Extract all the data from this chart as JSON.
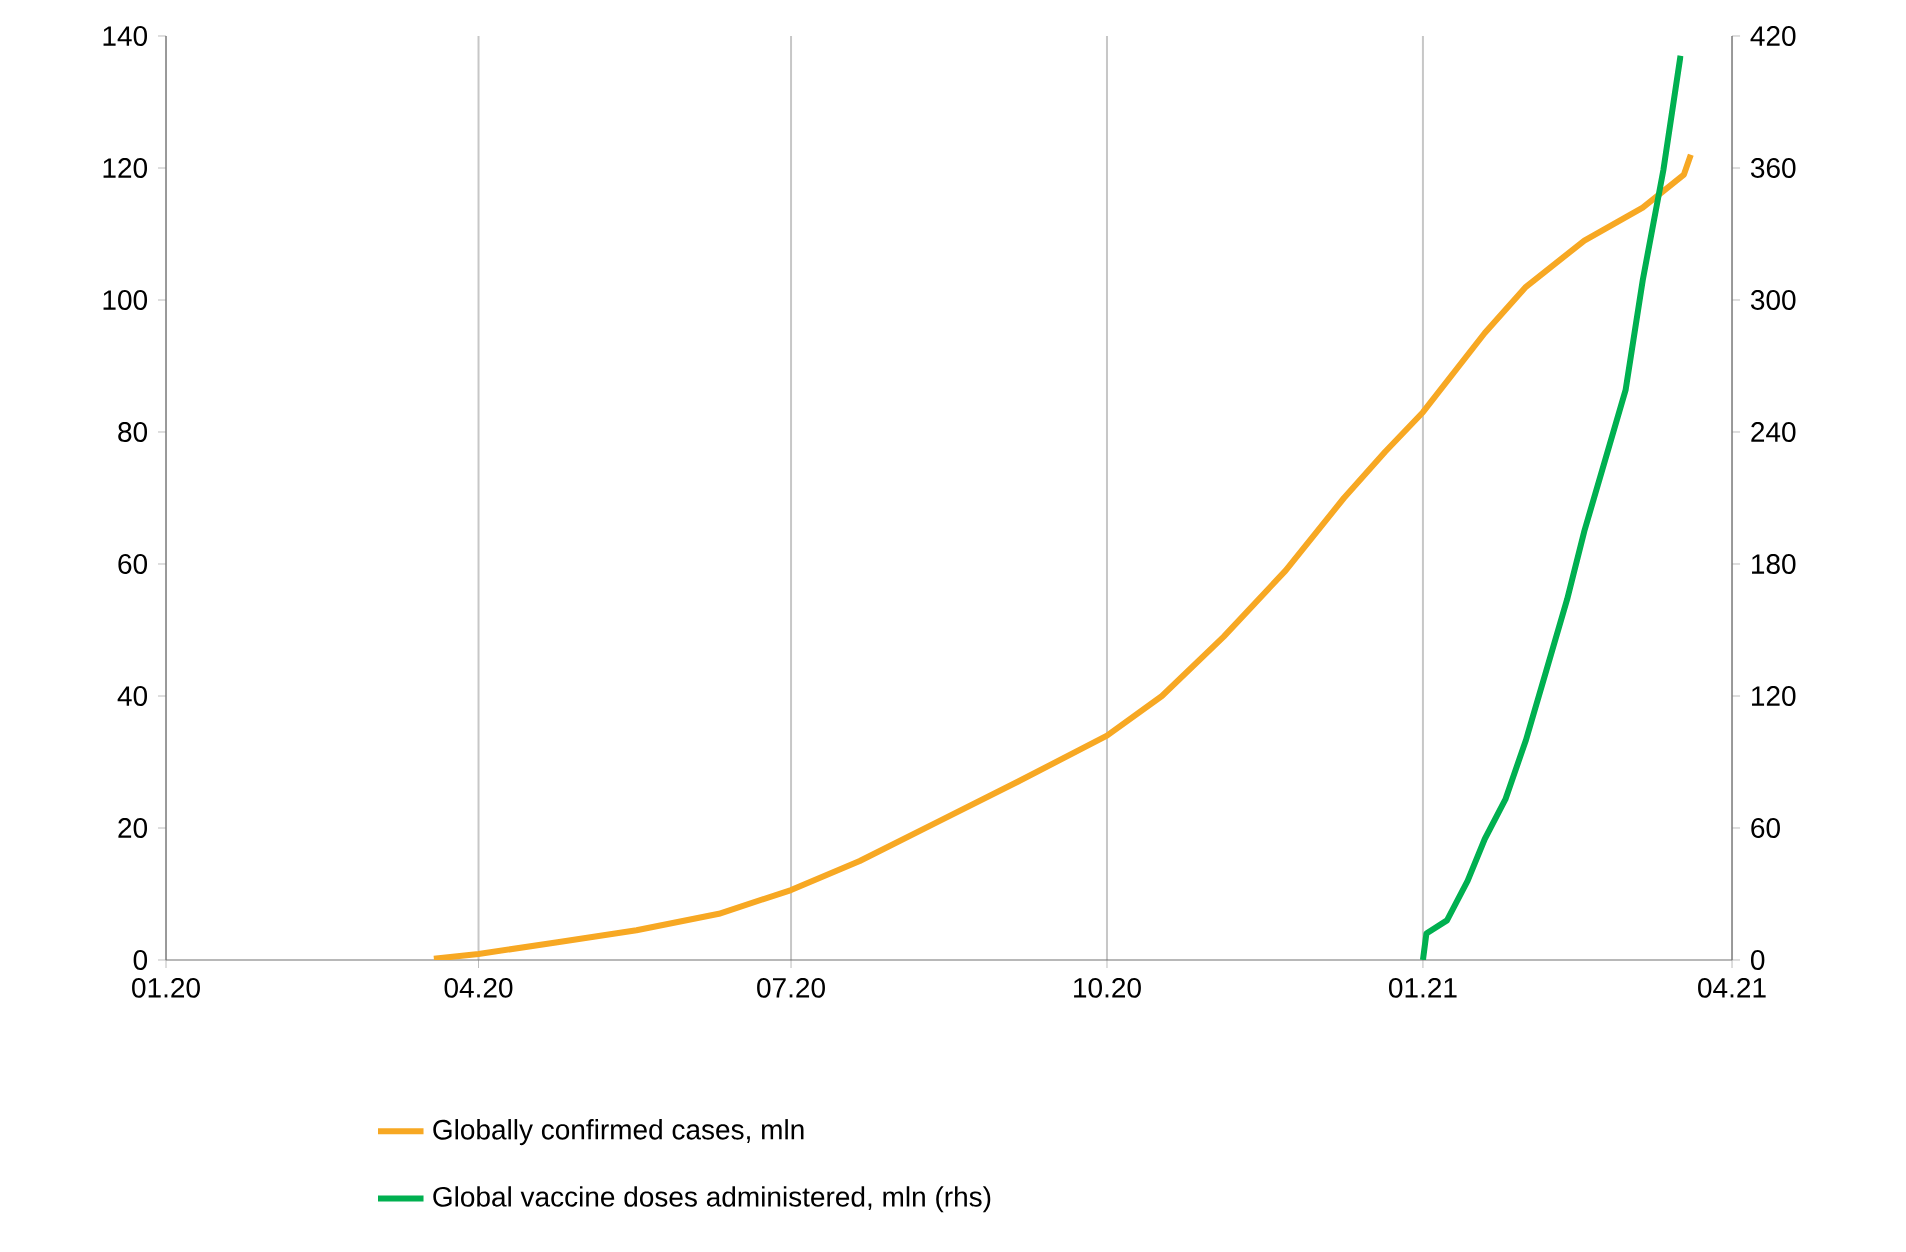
{
  "chart_data": {
    "type": "line",
    "xlim": [
      "2020-01-01",
      "2021-04-01"
    ],
    "xticks": [
      {
        "value": "2020-01-01",
        "label": "01.20"
      },
      {
        "value": "2020-04-01",
        "label": "04.20"
      },
      {
        "value": "2020-07-01",
        "label": "07.20"
      },
      {
        "value": "2020-10-01",
        "label": "10.20"
      },
      {
        "value": "2021-01-01",
        "label": "01.21"
      },
      {
        "value": "2021-04-01",
        "label": "04.21"
      }
    ],
    "ylim": [
      0,
      140
    ],
    "yticks": [
      0,
      20,
      40,
      60,
      80,
      100,
      120,
      140
    ],
    "y2lim": [
      0,
      420
    ],
    "y2ticks": [
      0,
      60,
      120,
      180,
      240,
      300,
      360,
      420
    ],
    "grid": "x",
    "legend": "bottom",
    "line_style": "solid",
    "marker": "none",
    "series": [
      {
        "name": "Globally confirmed cases, mln",
        "color": "#f7a823",
        "x": [
          "2020-03-19",
          "2020-04-01",
          "2020-04-24",
          "2020-05-17",
          "2020-06-10",
          "2020-07-01",
          "2020-07-21",
          "2020-08-13",
          "2020-09-05",
          "2020-10-01",
          "2020-10-17",
          "2020-11-04",
          "2020-11-22",
          "2020-12-09",
          "2020-12-21",
          "2021-01-01",
          "2021-01-19",
          "2021-01-31",
          "2021-02-17",
          "2021-03-06",
          "2021-03-18",
          "2021-03-20"
        ],
        "values": [
          0.2,
          0.9,
          2.7,
          4.5,
          7,
          10.6,
          15,
          21,
          27,
          34,
          40,
          49,
          59,
          70,
          77,
          83,
          95,
          102,
          109,
          114,
          119,
          122
        ]
      },
      {
        "name": "Global vaccine doses administered, mln (rhs)",
        "color": "#00b050",
        "axis": "y2",
        "x": [
          "2021-01-01",
          "2021-01-02",
          "2021-01-08",
          "2021-01-14",
          "2021-01-19",
          "2021-01-25",
          "2021-01-31",
          "2021-02-06",
          "2021-02-12",
          "2021-02-17",
          "2021-02-23",
          "2021-03-01",
          "2021-03-06",
          "2021-03-12",
          "2021-03-17"
        ],
        "values": [
          0,
          12,
          18,
          36,
          55,
          73,
          100,
          132,
          164,
          195,
          227,
          259,
          309,
          359,
          411
        ]
      }
    ]
  }
}
